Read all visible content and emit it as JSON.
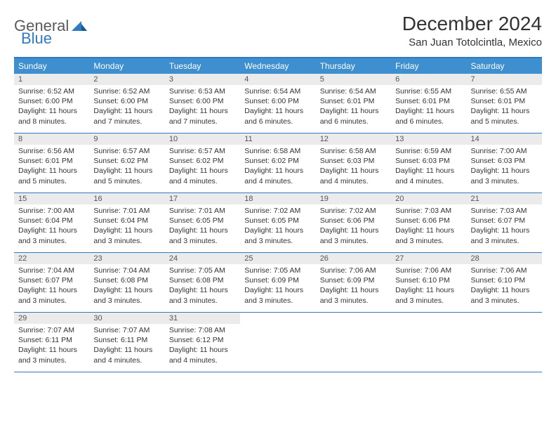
{
  "logo": {
    "part1": "General",
    "part2": "Blue"
  },
  "title": "December 2024",
  "location": "San Juan Totolcintla, Mexico",
  "colors": {
    "header_bg": "#3e8fcf",
    "border": "#2f7ac0",
    "date_bg": "#ebebeb",
    "logo_gray": "#5a5a5a",
    "logo_blue": "#2f7ac0"
  },
  "day_names": [
    "Sunday",
    "Monday",
    "Tuesday",
    "Wednesday",
    "Thursday",
    "Friday",
    "Saturday"
  ],
  "weeks": [
    [
      {
        "date": "1",
        "sunrise": "6:52 AM",
        "sunset": "6:00 PM",
        "daylight": "11 hours and 8 minutes."
      },
      {
        "date": "2",
        "sunrise": "6:52 AM",
        "sunset": "6:00 PM",
        "daylight": "11 hours and 7 minutes."
      },
      {
        "date": "3",
        "sunrise": "6:53 AM",
        "sunset": "6:00 PM",
        "daylight": "11 hours and 7 minutes."
      },
      {
        "date": "4",
        "sunrise": "6:54 AM",
        "sunset": "6:00 PM",
        "daylight": "11 hours and 6 minutes."
      },
      {
        "date": "5",
        "sunrise": "6:54 AM",
        "sunset": "6:01 PM",
        "daylight": "11 hours and 6 minutes."
      },
      {
        "date": "6",
        "sunrise": "6:55 AM",
        "sunset": "6:01 PM",
        "daylight": "11 hours and 6 minutes."
      },
      {
        "date": "7",
        "sunrise": "6:55 AM",
        "sunset": "6:01 PM",
        "daylight": "11 hours and 5 minutes."
      }
    ],
    [
      {
        "date": "8",
        "sunrise": "6:56 AM",
        "sunset": "6:01 PM",
        "daylight": "11 hours and 5 minutes."
      },
      {
        "date": "9",
        "sunrise": "6:57 AM",
        "sunset": "6:02 PM",
        "daylight": "11 hours and 5 minutes."
      },
      {
        "date": "10",
        "sunrise": "6:57 AM",
        "sunset": "6:02 PM",
        "daylight": "11 hours and 4 minutes."
      },
      {
        "date": "11",
        "sunrise": "6:58 AM",
        "sunset": "6:02 PM",
        "daylight": "11 hours and 4 minutes."
      },
      {
        "date": "12",
        "sunrise": "6:58 AM",
        "sunset": "6:03 PM",
        "daylight": "11 hours and 4 minutes."
      },
      {
        "date": "13",
        "sunrise": "6:59 AM",
        "sunset": "6:03 PM",
        "daylight": "11 hours and 4 minutes."
      },
      {
        "date": "14",
        "sunrise": "7:00 AM",
        "sunset": "6:03 PM",
        "daylight": "11 hours and 3 minutes."
      }
    ],
    [
      {
        "date": "15",
        "sunrise": "7:00 AM",
        "sunset": "6:04 PM",
        "daylight": "11 hours and 3 minutes."
      },
      {
        "date": "16",
        "sunrise": "7:01 AM",
        "sunset": "6:04 PM",
        "daylight": "11 hours and 3 minutes."
      },
      {
        "date": "17",
        "sunrise": "7:01 AM",
        "sunset": "6:05 PM",
        "daylight": "11 hours and 3 minutes."
      },
      {
        "date": "18",
        "sunrise": "7:02 AM",
        "sunset": "6:05 PM",
        "daylight": "11 hours and 3 minutes."
      },
      {
        "date": "19",
        "sunrise": "7:02 AM",
        "sunset": "6:06 PM",
        "daylight": "11 hours and 3 minutes."
      },
      {
        "date": "20",
        "sunrise": "7:03 AM",
        "sunset": "6:06 PM",
        "daylight": "11 hours and 3 minutes."
      },
      {
        "date": "21",
        "sunrise": "7:03 AM",
        "sunset": "6:07 PM",
        "daylight": "11 hours and 3 minutes."
      }
    ],
    [
      {
        "date": "22",
        "sunrise": "7:04 AM",
        "sunset": "6:07 PM",
        "daylight": "11 hours and 3 minutes."
      },
      {
        "date": "23",
        "sunrise": "7:04 AM",
        "sunset": "6:08 PM",
        "daylight": "11 hours and 3 minutes."
      },
      {
        "date": "24",
        "sunrise": "7:05 AM",
        "sunset": "6:08 PM",
        "daylight": "11 hours and 3 minutes."
      },
      {
        "date": "25",
        "sunrise": "7:05 AM",
        "sunset": "6:09 PM",
        "daylight": "11 hours and 3 minutes."
      },
      {
        "date": "26",
        "sunrise": "7:06 AM",
        "sunset": "6:09 PM",
        "daylight": "11 hours and 3 minutes."
      },
      {
        "date": "27",
        "sunrise": "7:06 AM",
        "sunset": "6:10 PM",
        "daylight": "11 hours and 3 minutes."
      },
      {
        "date": "28",
        "sunrise": "7:06 AM",
        "sunset": "6:10 PM",
        "daylight": "11 hours and 3 minutes."
      }
    ],
    [
      {
        "date": "29",
        "sunrise": "7:07 AM",
        "sunset": "6:11 PM",
        "daylight": "11 hours and 3 minutes."
      },
      {
        "date": "30",
        "sunrise": "7:07 AM",
        "sunset": "6:11 PM",
        "daylight": "11 hours and 4 minutes."
      },
      {
        "date": "31",
        "sunrise": "7:08 AM",
        "sunset": "6:12 PM",
        "daylight": "11 hours and 4 minutes."
      },
      null,
      null,
      null,
      null
    ]
  ],
  "labels": {
    "sunrise_prefix": "Sunrise: ",
    "sunset_prefix": "Sunset: ",
    "daylight_prefix": "Daylight: "
  }
}
